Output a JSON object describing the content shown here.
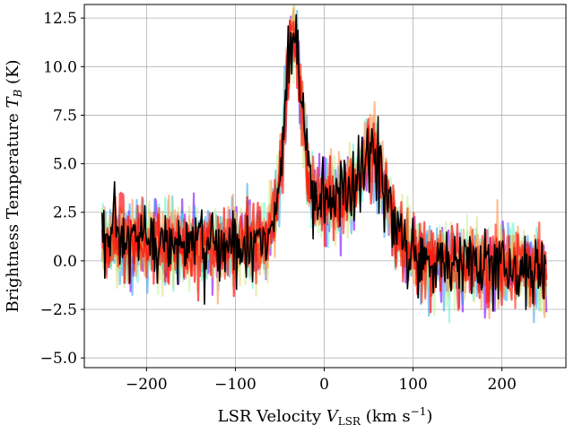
{
  "chart_data": {
    "type": "line",
    "title": "",
    "xlabel": {
      "main": "LSR Velocity ",
      "var": "V",
      "sub": "LSR",
      "unit_pre": " (km s",
      "unit_sup": "−1",
      "unit_post": ")"
    },
    "ylabel": {
      "main": "Brightness Temperature ",
      "var": "T",
      "sub": "B",
      "unit": " (K)"
    },
    "xlim": [
      -270,
      272
    ],
    "ylim": [
      -5.5,
      13.2
    ],
    "x_ticks": [
      -200,
      -100,
      0,
      100,
      200
    ],
    "x_tick_labels": [
      "−200",
      "−100",
      "0",
      "100",
      "200"
    ],
    "y_ticks": [
      -5.0,
      -2.5,
      0.0,
      2.5,
      5.0,
      7.5,
      10.0,
      12.5
    ],
    "y_tick_labels": [
      "−5.0",
      "−2.5",
      "0.0",
      "2.5",
      "5.0",
      "7.5",
      "10.0",
      "12.5"
    ],
    "grid": true,
    "legend": "none",
    "x_range": [
      -250,
      250
    ],
    "n_channels": 500,
    "underlying_profile": {
      "baseline": 0.3,
      "baseline_slope_per_kms": -0.003,
      "components": [
        {
          "center": -35,
          "amplitude": 9.5,
          "fwhm": 22
        },
        {
          "center": 55,
          "amplitude": 3.6,
          "fwhm": 32
        },
        {
          "center": 10,
          "amplitude": 2.8,
          "fwhm": 110
        }
      ]
    },
    "noise_rms": 1.0,
    "series": [
      {
        "color": "#8000ff",
        "opacity": 0.6,
        "seed": 11
      },
      {
        "color": "#1996f3",
        "opacity": 0.5,
        "seed": 23
      },
      {
        "color": "#4cf2ce",
        "opacity": 0.5,
        "seed": 37
      },
      {
        "color": "#b2f396",
        "opacity": 0.5,
        "seed": 41
      },
      {
        "color": "#d4d45a",
        "opacity": 0.45,
        "seed": 53
      },
      {
        "color": "#ff964f",
        "opacity": 0.6,
        "seed": 67
      },
      {
        "color": "#ff2200",
        "opacity": 0.6,
        "seed": 71
      },
      {
        "color": "#ff0000",
        "opacity": 0.65,
        "seed": 83
      },
      {
        "color": "#000000",
        "opacity": 1.0,
        "seed": 97
      }
    ]
  }
}
